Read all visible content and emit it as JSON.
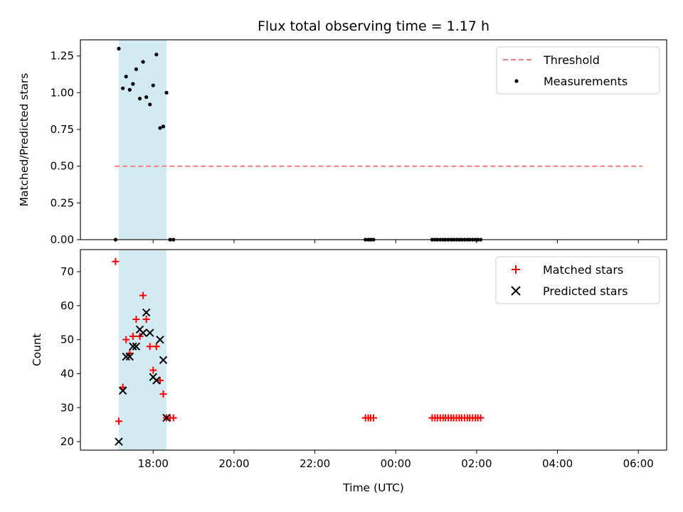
{
  "chart_data": {
    "type": "scatter",
    "title": "Flux total observing time = 1.17 h",
    "xlabel": "Time (UTC)",
    "x_unit": "hours from 00:00 of the first day",
    "xlim": [
      16.2,
      30.7
    ],
    "x_ticks": [
      18,
      20,
      22,
      24,
      26,
      28,
      30
    ],
    "x_tick_labels": [
      "18:00",
      "20:00",
      "22:00",
      "00:00",
      "02:00",
      "04:00",
      "06:00"
    ],
    "highlight_span": {
      "x_start": 17.15,
      "x_end": 18.33,
      "color": "#add8e6"
    },
    "colors": {
      "threshold": "#f08080",
      "measurements": "#000000",
      "matched": "#ff0000",
      "predicted": "#000000",
      "span": "#add8e6"
    },
    "panels": [
      {
        "ylabel": "Matched/Predicted stars",
        "ylim": [
          0,
          1.36
        ],
        "y_ticks": [
          0.0,
          0.25,
          0.5,
          0.75,
          1.0,
          1.25
        ],
        "y_tick_labels": [
          "0.00",
          "0.25",
          "0.50",
          "0.75",
          "1.00",
          "1.25"
        ],
        "legend_position": "top-right",
        "series": [
          {
            "name": "Threshold",
            "type": "line",
            "style": "dashed",
            "x": [
              17.05,
              30.1
            ],
            "y": [
              0.5,
              0.5
            ]
          },
          {
            "name": "Measurements",
            "type": "scatter",
            "marker": "dot",
            "x": [
              17.07,
              17.15,
              17.25,
              17.33,
              17.42,
              17.5,
              17.58,
              17.67,
              17.75,
              17.83,
              17.92,
              18.0,
              18.08,
              18.17,
              18.25,
              18.33,
              18.42,
              18.5,
              23.25,
              23.32,
              23.38,
              23.45,
              24.9,
              24.97,
              25.03,
              25.1,
              25.17,
              25.23,
              25.3,
              25.37,
              25.43,
              25.5,
              25.57,
              25.63,
              25.7,
              25.77,
              25.83,
              25.9,
              25.97,
              26.03,
              26.1
            ],
            "y": [
              0.0,
              1.3,
              1.03,
              1.11,
              1.02,
              1.06,
              1.16,
              0.96,
              1.21,
              0.97,
              0.92,
              1.05,
              1.26,
              0.76,
              0.77,
              1.0,
              0.0,
              0.0,
              0.0,
              0.0,
              0.0,
              0.0,
              0.0,
              0.0,
              0.0,
              0.0,
              0.0,
              0.0,
              0.0,
              0.0,
              0.0,
              0.0,
              0.0,
              0.0,
              0.0,
              0.0,
              0.0,
              0.0,
              0.0,
              0.0,
              0.0
            ]
          }
        ]
      },
      {
        "ylabel": "Count",
        "ylim": [
          17.5,
          76.5
        ],
        "y_ticks": [
          20,
          30,
          40,
          50,
          60,
          70
        ],
        "y_tick_labels": [
          "20",
          "30",
          "40",
          "50",
          "60",
          "70"
        ],
        "legend_position": "top-right",
        "series": [
          {
            "name": "Matched stars",
            "type": "scatter",
            "marker": "plus",
            "x": [
              17.07,
              17.15,
              17.25,
              17.33,
              17.42,
              17.5,
              17.58,
              17.67,
              17.75,
              17.83,
              17.92,
              18.0,
              18.08,
              18.17,
              18.25,
              18.33,
              18.42,
              18.5,
              23.25,
              23.32,
              23.38,
              23.45,
              24.9,
              24.97,
              25.03,
              25.1,
              25.17,
              25.23,
              25.3,
              25.37,
              25.43,
              25.5,
              25.57,
              25.63,
              25.7,
              25.77,
              25.83,
              25.9,
              25.97,
              26.03,
              26.1
            ],
            "y": [
              73,
              26,
              36,
              50,
              46,
              51,
              56,
              51,
              63,
              56,
              48,
              41,
              48,
              38,
              34,
              27,
              27,
              27,
              27,
              27,
              27,
              27,
              27,
              27,
              27,
              27,
              27,
              27,
              27,
              27,
              27,
              27,
              27,
              27,
              27,
              27,
              27,
              27,
              27,
              27,
              27
            ]
          },
          {
            "name": "Predicted stars",
            "type": "scatter",
            "marker": "x",
            "x": [
              17.15,
              17.25,
              17.33,
              17.42,
              17.5,
              17.58,
              17.67,
              17.75,
              17.83,
              17.92,
              18.0,
              18.08,
              18.17,
              18.25,
              18.33
            ],
            "y": [
              20,
              35,
              45,
              45,
              48,
              48,
              53,
              52,
              58,
              52,
              39,
              38,
              50,
              44,
              27
            ]
          }
        ]
      }
    ]
  }
}
